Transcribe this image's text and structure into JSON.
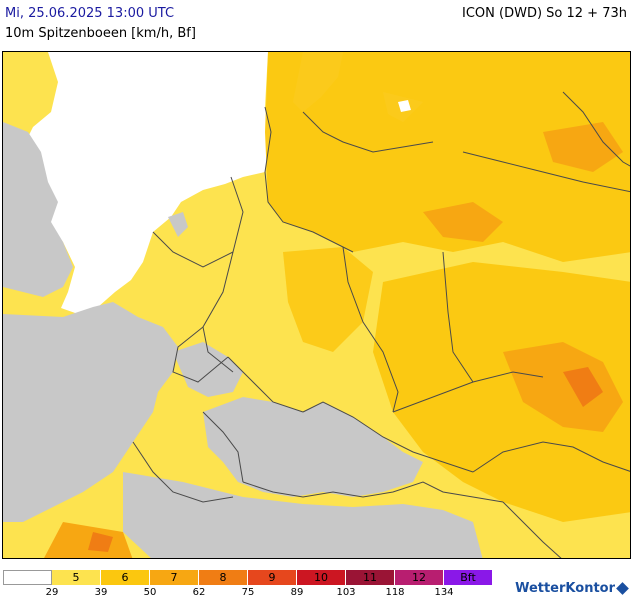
{
  "header": {
    "datetime": "Mi, 25.06.2025 13:00 UTC",
    "parameter": "10m Spitzenboeen [km/h, Bf]",
    "model": "ICON (DWD) So 12 + 73h"
  },
  "legend": {
    "segments": [
      {
        "label": "",
        "color": "#ffffff"
      },
      {
        "label": "5",
        "color": "#fde34f"
      },
      {
        "label": "6",
        "color": "#fbc70f"
      },
      {
        "label": "7",
        "color": "#f7a712"
      },
      {
        "label": "8",
        "color": "#f07d14"
      },
      {
        "label": "9",
        "color": "#e6471d"
      },
      {
        "label": "10",
        "color": "#cc1622"
      },
      {
        "label": "11",
        "color": "#9a1435"
      },
      {
        "label": "12",
        "color": "#b81e70"
      },
      {
        "label": "Bft",
        "color": "#8a18e8"
      }
    ],
    "ticks": [
      "29",
      "39",
      "50",
      "62",
      "75",
      "89",
      "103",
      "118",
      "134"
    ]
  },
  "colors": {
    "sea": "#ffffff",
    "outside_domain": "#c8c8c8",
    "border": "#4a4a4a"
  },
  "logo": {
    "text": "WetterKontor"
  }
}
